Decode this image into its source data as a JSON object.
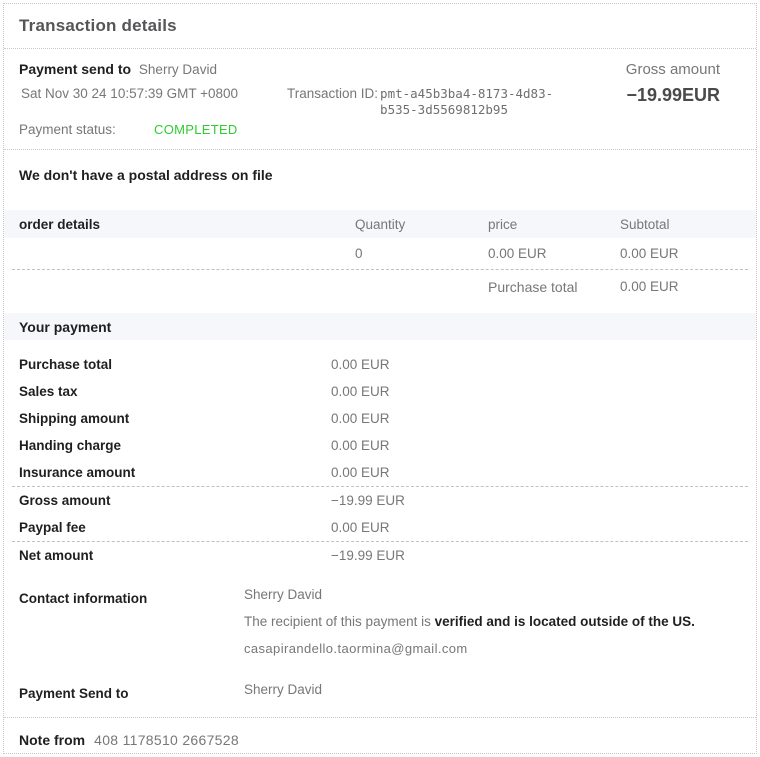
{
  "page": {
    "title": "Transaction details"
  },
  "colors": {
    "status_completed": "#2fcc2f",
    "section_header_bg": "#f6f7fb",
    "text_gray": "#76777a",
    "text_dark": "#1f1f1f"
  },
  "summary": {
    "payment_send_to_label": "Payment send to",
    "payee_name": "Sherry David",
    "date": "Sat Nov 30 24 10:57:39 GMT +0800",
    "transaction_id_label": "Transaction ID:",
    "transaction_id": "pmt-a45b3ba4-8173-4d83-b535-3d5569812b95",
    "gross_amount_label": "Gross amount",
    "gross_amount_value": "−19.99EUR",
    "payment_status_label": "Payment status:",
    "payment_status_value": "COMPLETED"
  },
  "postal_notice": "We don't have a postal address on file",
  "order_details": {
    "header": {
      "label": "order details",
      "columns": [
        "Quantity",
        "price",
        "Subtotal"
      ]
    },
    "rows": [
      {
        "quantity": "0",
        "price": "0.00 EUR",
        "subtotal": "0.00 EUR"
      }
    ],
    "purchase_total_label": "Purchase total",
    "purchase_total_value": "0.00 EUR"
  },
  "your_payment": {
    "title": "Your payment",
    "rows": [
      {
        "label": "Purchase total",
        "value": "0.00 EUR"
      },
      {
        "label": "Sales tax",
        "value": "0.00 EUR"
      },
      {
        "label": "Shipping amount",
        "value": "0.00 EUR"
      },
      {
        "label": "Handing charge",
        "value": "0.00 EUR"
      },
      {
        "label": "Insurance amount",
        "value": "0.00 EUR"
      },
      {
        "label": "Gross amount",
        "value": "−19.99 EUR"
      },
      {
        "label": "Paypal fee",
        "value": "0.00 EUR"
      },
      {
        "label": "Net amount",
        "value": "−19.99 EUR"
      }
    ]
  },
  "contact": {
    "title": "Contact information",
    "name": "Sherry David",
    "recipient_prefix": "The recipient of this payment is ",
    "recipient_bold": "verified and is located outside of the US.",
    "email": "casapirandello.taormina@gmail.com"
  },
  "payment_send_to_bottom": {
    "label": "Payment Send to",
    "name": "Sherry David"
  },
  "note": {
    "label": "Note from",
    "value": "408 1178510 2667528"
  }
}
